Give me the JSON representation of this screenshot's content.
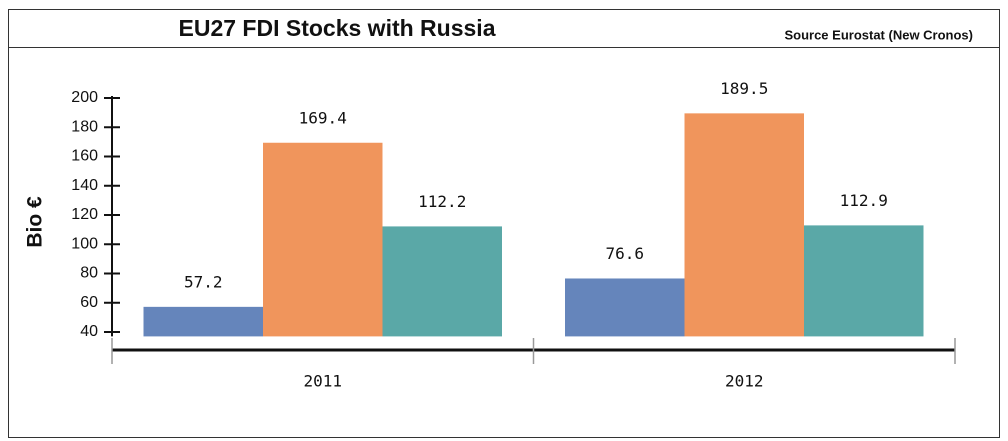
{
  "chart_data": {
    "type": "bar",
    "title": "EU27 FDI Stocks with Russia",
    "source": "Source Eurostat (New Cronos)",
    "y_label": "Bio  €",
    "categories": [
      "2011",
      "2012"
    ],
    "series": [
      {
        "color": "#6585bb",
        "values": [
          57.2,
          76.6
        ]
      },
      {
        "color": "#f0955c",
        "values": [
          169.4,
          189.5
        ]
      },
      {
        "color": "#5aa8a7",
        "values": [
          112.2,
          112.9
        ]
      }
    ],
    "ylim": [
      37,
      200
    ],
    "yticks": [
      40,
      60,
      80,
      100,
      120,
      140,
      160,
      180,
      200
    ]
  }
}
